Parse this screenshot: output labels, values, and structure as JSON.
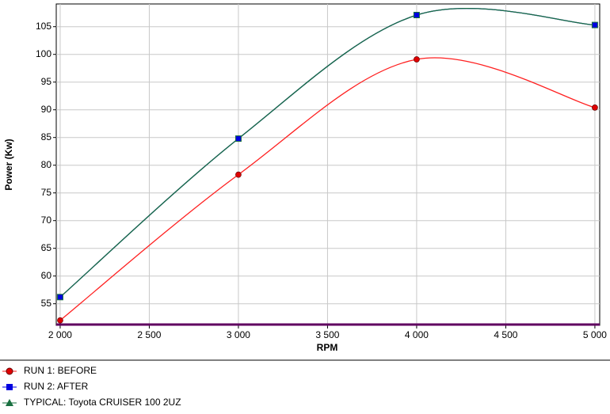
{
  "chart_data": {
    "type": "line",
    "x_label": "RPM",
    "y_label": "Power (Kw)",
    "x": [
      2000,
      3000,
      4000,
      5000
    ],
    "series": [
      {
        "name": "RUN 1: BEFORE",
        "color": "#ff2020",
        "marker": "circle",
        "marker_color": "#e00000",
        "values": [
          52.0,
          78.3,
          99.1,
          90.4
        ]
      },
      {
        "name": "RUN 2: AFTER",
        "color": "#0000e0",
        "marker": "square",
        "marker_color": "#0000e0",
        "values": [
          56.2,
          84.8,
          107.1,
          105.3
        ]
      },
      {
        "name": "TYPICAL: Toyota CRUISER 100 2UZ",
        "color": "#1a7040",
        "marker": "triangle",
        "marker_color": "#1a7040",
        "values": [
          56.2,
          84.8,
          107.1,
          105.3
        ]
      }
    ],
    "xlim": [
      1978,
      5027
    ],
    "ylim": [
      51.1,
      109.1
    ],
    "xticks": [
      {
        "value": 2000,
        "label": "2 000"
      },
      {
        "value": 2500,
        "label": "2 500"
      },
      {
        "value": 3000,
        "label": "3 000"
      },
      {
        "value": 3500,
        "label": "3 500"
      },
      {
        "value": 4000,
        "label": "4 000"
      },
      {
        "value": 4500,
        "label": "4 500"
      },
      {
        "value": 5000,
        "label": "5 000"
      }
    ],
    "yticks": [
      55,
      60,
      65,
      70,
      75,
      80,
      85,
      90,
      95,
      100,
      105
    ],
    "grid": true
  }
}
